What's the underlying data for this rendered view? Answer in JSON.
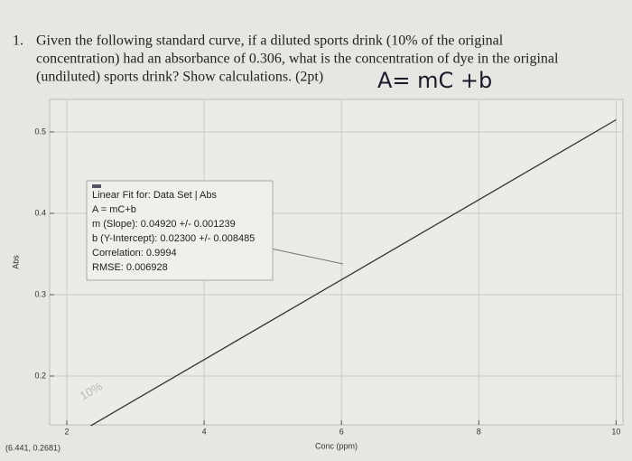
{
  "question": {
    "number": "1.",
    "lines": [
      "Given the following standard curve, if a diluted sports drink (10% of the original",
      "concentration) had an absorbance of 0.306, what is the concentration of dye in the original",
      "(undiluted) sports drink? Show calculations. (2pt)"
    ],
    "handwritten": "A= mC +b"
  },
  "chart_data": {
    "type": "line",
    "x_label": "Conc (ppm)",
    "y_label": "Abs",
    "x": [
      2.35,
      10
    ],
    "series": [
      {
        "name": "Linear Fit",
        "color": "#333333",
        "values": [
          0.139,
          0.515
        ]
      }
    ],
    "xlim": [
      1.75,
      10.1
    ],
    "xticks": [
      2,
      4,
      6,
      8,
      10
    ],
    "ylim": [
      0.14,
      0.54
    ],
    "yticks": [
      0.2,
      0.3,
      0.4,
      0.5
    ],
    "grid": true,
    "fit_box": [
      "Linear Fit for: Data Set | Abs",
      "A = mC+b",
      "m (Slope): 0.04920 +/- 0.001239",
      "b (Y-Intercept): 0.02300 +/- 0.008485",
      "Correlation: 0.9994",
      "RMSE: 0.006928"
    ],
    "cursor_readout": "(6.441, 0.2681)",
    "handwritten_note": "10%"
  }
}
